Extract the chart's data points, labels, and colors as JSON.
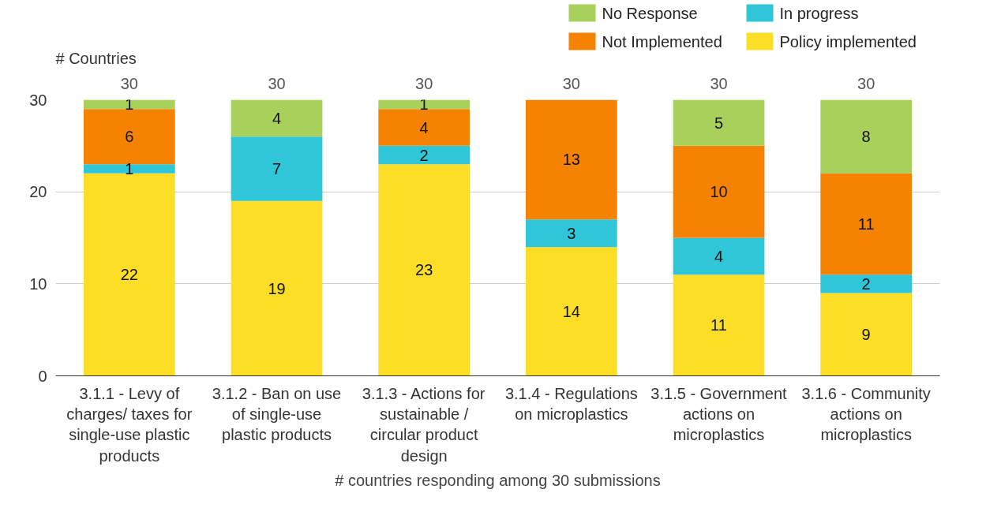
{
  "chart_data": {
    "type": "bar",
    "stacked": true,
    "xlabel": "# countries responding among 30 submissions",
    "ylabel": "# Countries",
    "categories": [
      "3.1.1 - Levy of charges/ taxes for single-use plastic products",
      "3.1.2 - Ban on use of single-use plastic products",
      "3.1.3 - Actions for sustainable / circular product design",
      "3.1.4 - Regulations on microplastics",
      "3.1.5 - Government actions on microplastics",
      "3.1.6 - Community actions on microplastics"
    ],
    "series": [
      {
        "name": "Policy implemented",
        "color": "#fbde25",
        "values": [
          22,
          19,
          23,
          14,
          11,
          9
        ],
        "value_labels": [
          "22",
          "19",
          "23",
          "14",
          "11",
          "9"
        ]
      },
      {
        "name": "In progress",
        "color": "#2fc6d8",
        "values": [
          1,
          7,
          2,
          3,
          4,
          2
        ],
        "value_labels": [
          "1",
          "7",
          "2",
          "3",
          "4",
          "2"
        ]
      },
      {
        "name": "Not Implemented",
        "color": "#f58200",
        "values": [
          6,
          0,
          4,
          13,
          10,
          11
        ],
        "value_labels": [
          "6",
          null,
          "4",
          "13",
          "10",
          "11"
        ]
      },
      {
        "name": "No Response",
        "color": "#a9d05a",
        "values": [
          1,
          4,
          1,
          0,
          5,
          8
        ],
        "value_labels": [
          "1",
          "4",
          "1",
          null,
          "5",
          "8"
        ]
      }
    ],
    "totals": [
      "30",
      "30",
      "30",
      "30",
      "30",
      "30"
    ],
    "ylim": [
      0,
      30
    ],
    "yticks": [
      0,
      10,
      20,
      30
    ],
    "grid": "y",
    "legend": "top right"
  }
}
